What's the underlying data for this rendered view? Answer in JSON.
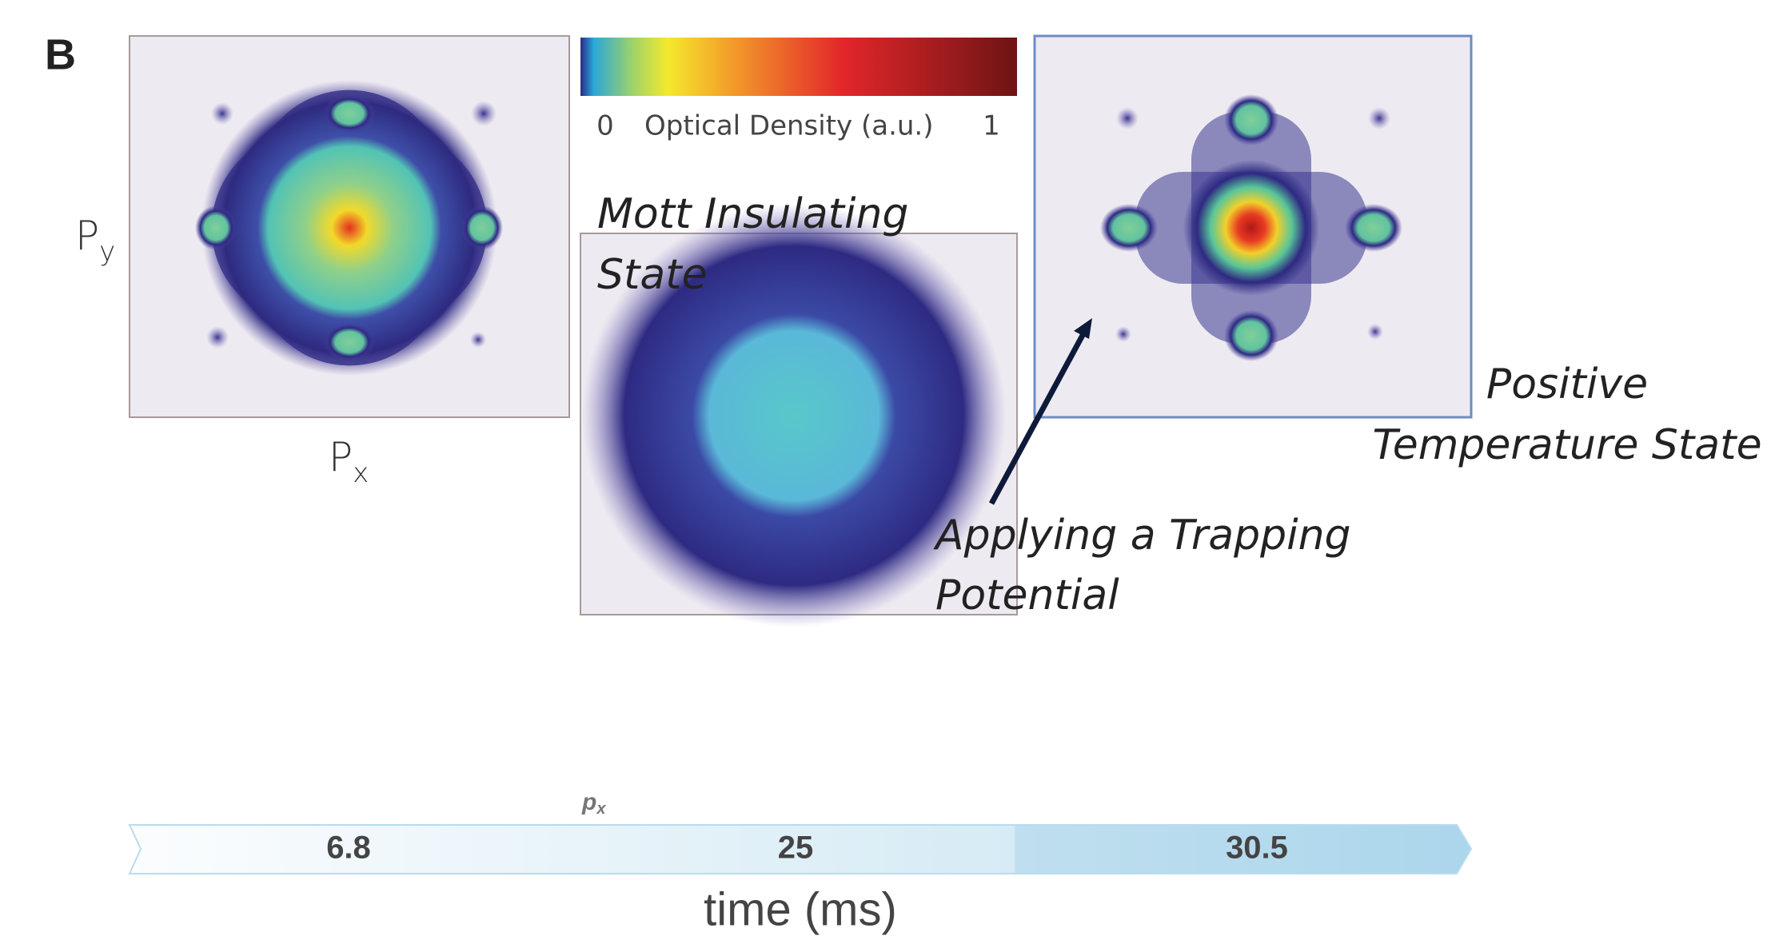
{
  "panel_label": "B",
  "axis_labels": {
    "py": {
      "base": "P",
      "sub": "y"
    },
    "px": {
      "base": "P",
      "sub": "x"
    },
    "px_small": {
      "base": "p",
      "sub": "x"
    }
  },
  "colorbar": {
    "min": "0",
    "label": "Optical Density (a.u.)",
    "max": "1"
  },
  "annotations": {
    "mott": [
      "Mott Insulating",
      "State"
    ],
    "trapping": [
      "Applying a Trapping",
      "Potential"
    ],
    "positive": [
      "Positive",
      "Temperature State"
    ]
  },
  "timeline": {
    "labels": [
      "6.8",
      "25",
      "30.5"
    ],
    "axis_label": "time (ms)"
  }
}
